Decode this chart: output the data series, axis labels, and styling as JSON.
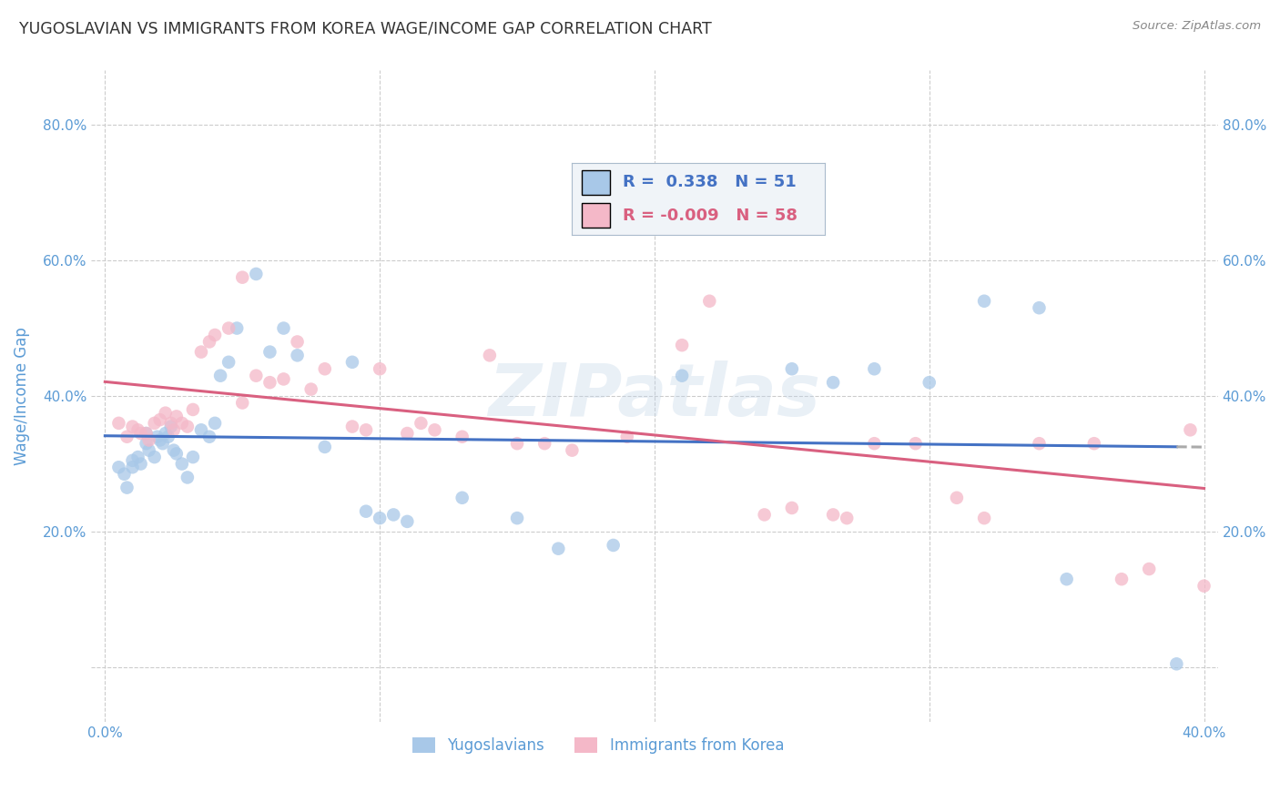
{
  "title": "YUGOSLAVIAN VS IMMIGRANTS FROM KOREA WAGE/INCOME GAP CORRELATION CHART",
  "source": "Source: ZipAtlas.com",
  "ylabel": "Wage/Income Gap",
  "xlim": [
    -0.005,
    0.405
  ],
  "ylim": [
    -0.08,
    0.88
  ],
  "x_ticks": [
    0.0,
    0.1,
    0.2,
    0.3,
    0.4
  ],
  "x_tick_labels_show": [
    "0.0%",
    "",
    "",
    "",
    "40.0%"
  ],
  "y_ticks": [
    0.0,
    0.2,
    0.4,
    0.6,
    0.8
  ],
  "y_tick_labels_left": [
    "",
    "20.0%",
    "40.0%",
    "60.0%",
    "80.0%"
  ],
  "y_tick_labels_right": [
    "",
    "20.0%",
    "40.0%",
    "60.0%",
    "80.0%"
  ],
  "blue_scatter_color": "#a8c8e8",
  "pink_scatter_color": "#f4b8c8",
  "blue_line_color": "#4472c4",
  "pink_line_color": "#d96080",
  "trend_ext_color": "#aaaaaa",
  "R_blue": 0.338,
  "N_blue": 51,
  "R_pink": -0.009,
  "N_pink": 58,
  "watermark": "ZIPatlas",
  "legend_label_blue": "Yugoslavians",
  "legend_label_pink": "Immigrants from Korea",
  "blue_x": [
    0.005,
    0.007,
    0.008,
    0.01,
    0.01,
    0.012,
    0.013,
    0.015,
    0.015,
    0.016,
    0.018,
    0.019,
    0.02,
    0.021,
    0.022,
    0.023,
    0.024,
    0.025,
    0.026,
    0.028,
    0.03,
    0.032,
    0.035,
    0.038,
    0.04,
    0.042,
    0.045,
    0.048,
    0.055,
    0.06,
    0.065,
    0.07,
    0.08,
    0.09,
    0.095,
    0.1,
    0.105,
    0.11,
    0.13,
    0.15,
    0.165,
    0.185,
    0.21,
    0.25,
    0.265,
    0.28,
    0.3,
    0.32,
    0.34,
    0.35,
    0.39
  ],
  "blue_y": [
    0.295,
    0.285,
    0.265,
    0.305,
    0.295,
    0.31,
    0.3,
    0.345,
    0.33,
    0.32,
    0.31,
    0.34,
    0.335,
    0.33,
    0.345,
    0.34,
    0.355,
    0.32,
    0.315,
    0.3,
    0.28,
    0.31,
    0.35,
    0.34,
    0.36,
    0.43,
    0.45,
    0.5,
    0.58,
    0.465,
    0.5,
    0.46,
    0.325,
    0.45,
    0.23,
    0.22,
    0.225,
    0.215,
    0.25,
    0.22,
    0.175,
    0.18,
    0.43,
    0.44,
    0.42,
    0.44,
    0.42,
    0.54,
    0.53,
    0.13,
    0.005
  ],
  "pink_x": [
    0.005,
    0.008,
    0.01,
    0.012,
    0.013,
    0.015,
    0.016,
    0.018,
    0.02,
    0.022,
    0.024,
    0.025,
    0.026,
    0.028,
    0.03,
    0.032,
    0.035,
    0.038,
    0.04,
    0.045,
    0.05,
    0.055,
    0.06,
    0.065,
    0.07,
    0.075,
    0.08,
    0.09,
    0.095,
    0.1,
    0.11,
    0.115,
    0.12,
    0.13,
    0.14,
    0.15,
    0.16,
    0.17,
    0.19,
    0.2,
    0.21,
    0.22,
    0.24,
    0.25,
    0.265,
    0.27,
    0.28,
    0.295,
    0.31,
    0.32,
    0.34,
    0.36,
    0.37,
    0.38,
    0.395,
    0.4,
    0.21,
    0.05
  ],
  "pink_y": [
    0.36,
    0.34,
    0.355,
    0.35,
    0.345,
    0.345,
    0.335,
    0.36,
    0.365,
    0.375,
    0.36,
    0.35,
    0.37,
    0.36,
    0.355,
    0.38,
    0.465,
    0.48,
    0.49,
    0.5,
    0.39,
    0.43,
    0.42,
    0.425,
    0.48,
    0.41,
    0.44,
    0.355,
    0.35,
    0.44,
    0.345,
    0.36,
    0.35,
    0.34,
    0.46,
    0.33,
    0.33,
    0.32,
    0.34,
    0.65,
    0.7,
    0.54,
    0.225,
    0.235,
    0.225,
    0.22,
    0.33,
    0.33,
    0.25,
    0.22,
    0.33,
    0.33,
    0.13,
    0.145,
    0.35,
    0.12,
    0.475,
    0.575
  ],
  "background_color": "#ffffff",
  "grid_color": "#cccccc",
  "title_color": "#333333",
  "axis_label_color": "#5b9bd5",
  "tick_label_color": "#5b9bd5",
  "legend_box_color": "#f0f4f8",
  "legend_border_color": "#aabbcc"
}
